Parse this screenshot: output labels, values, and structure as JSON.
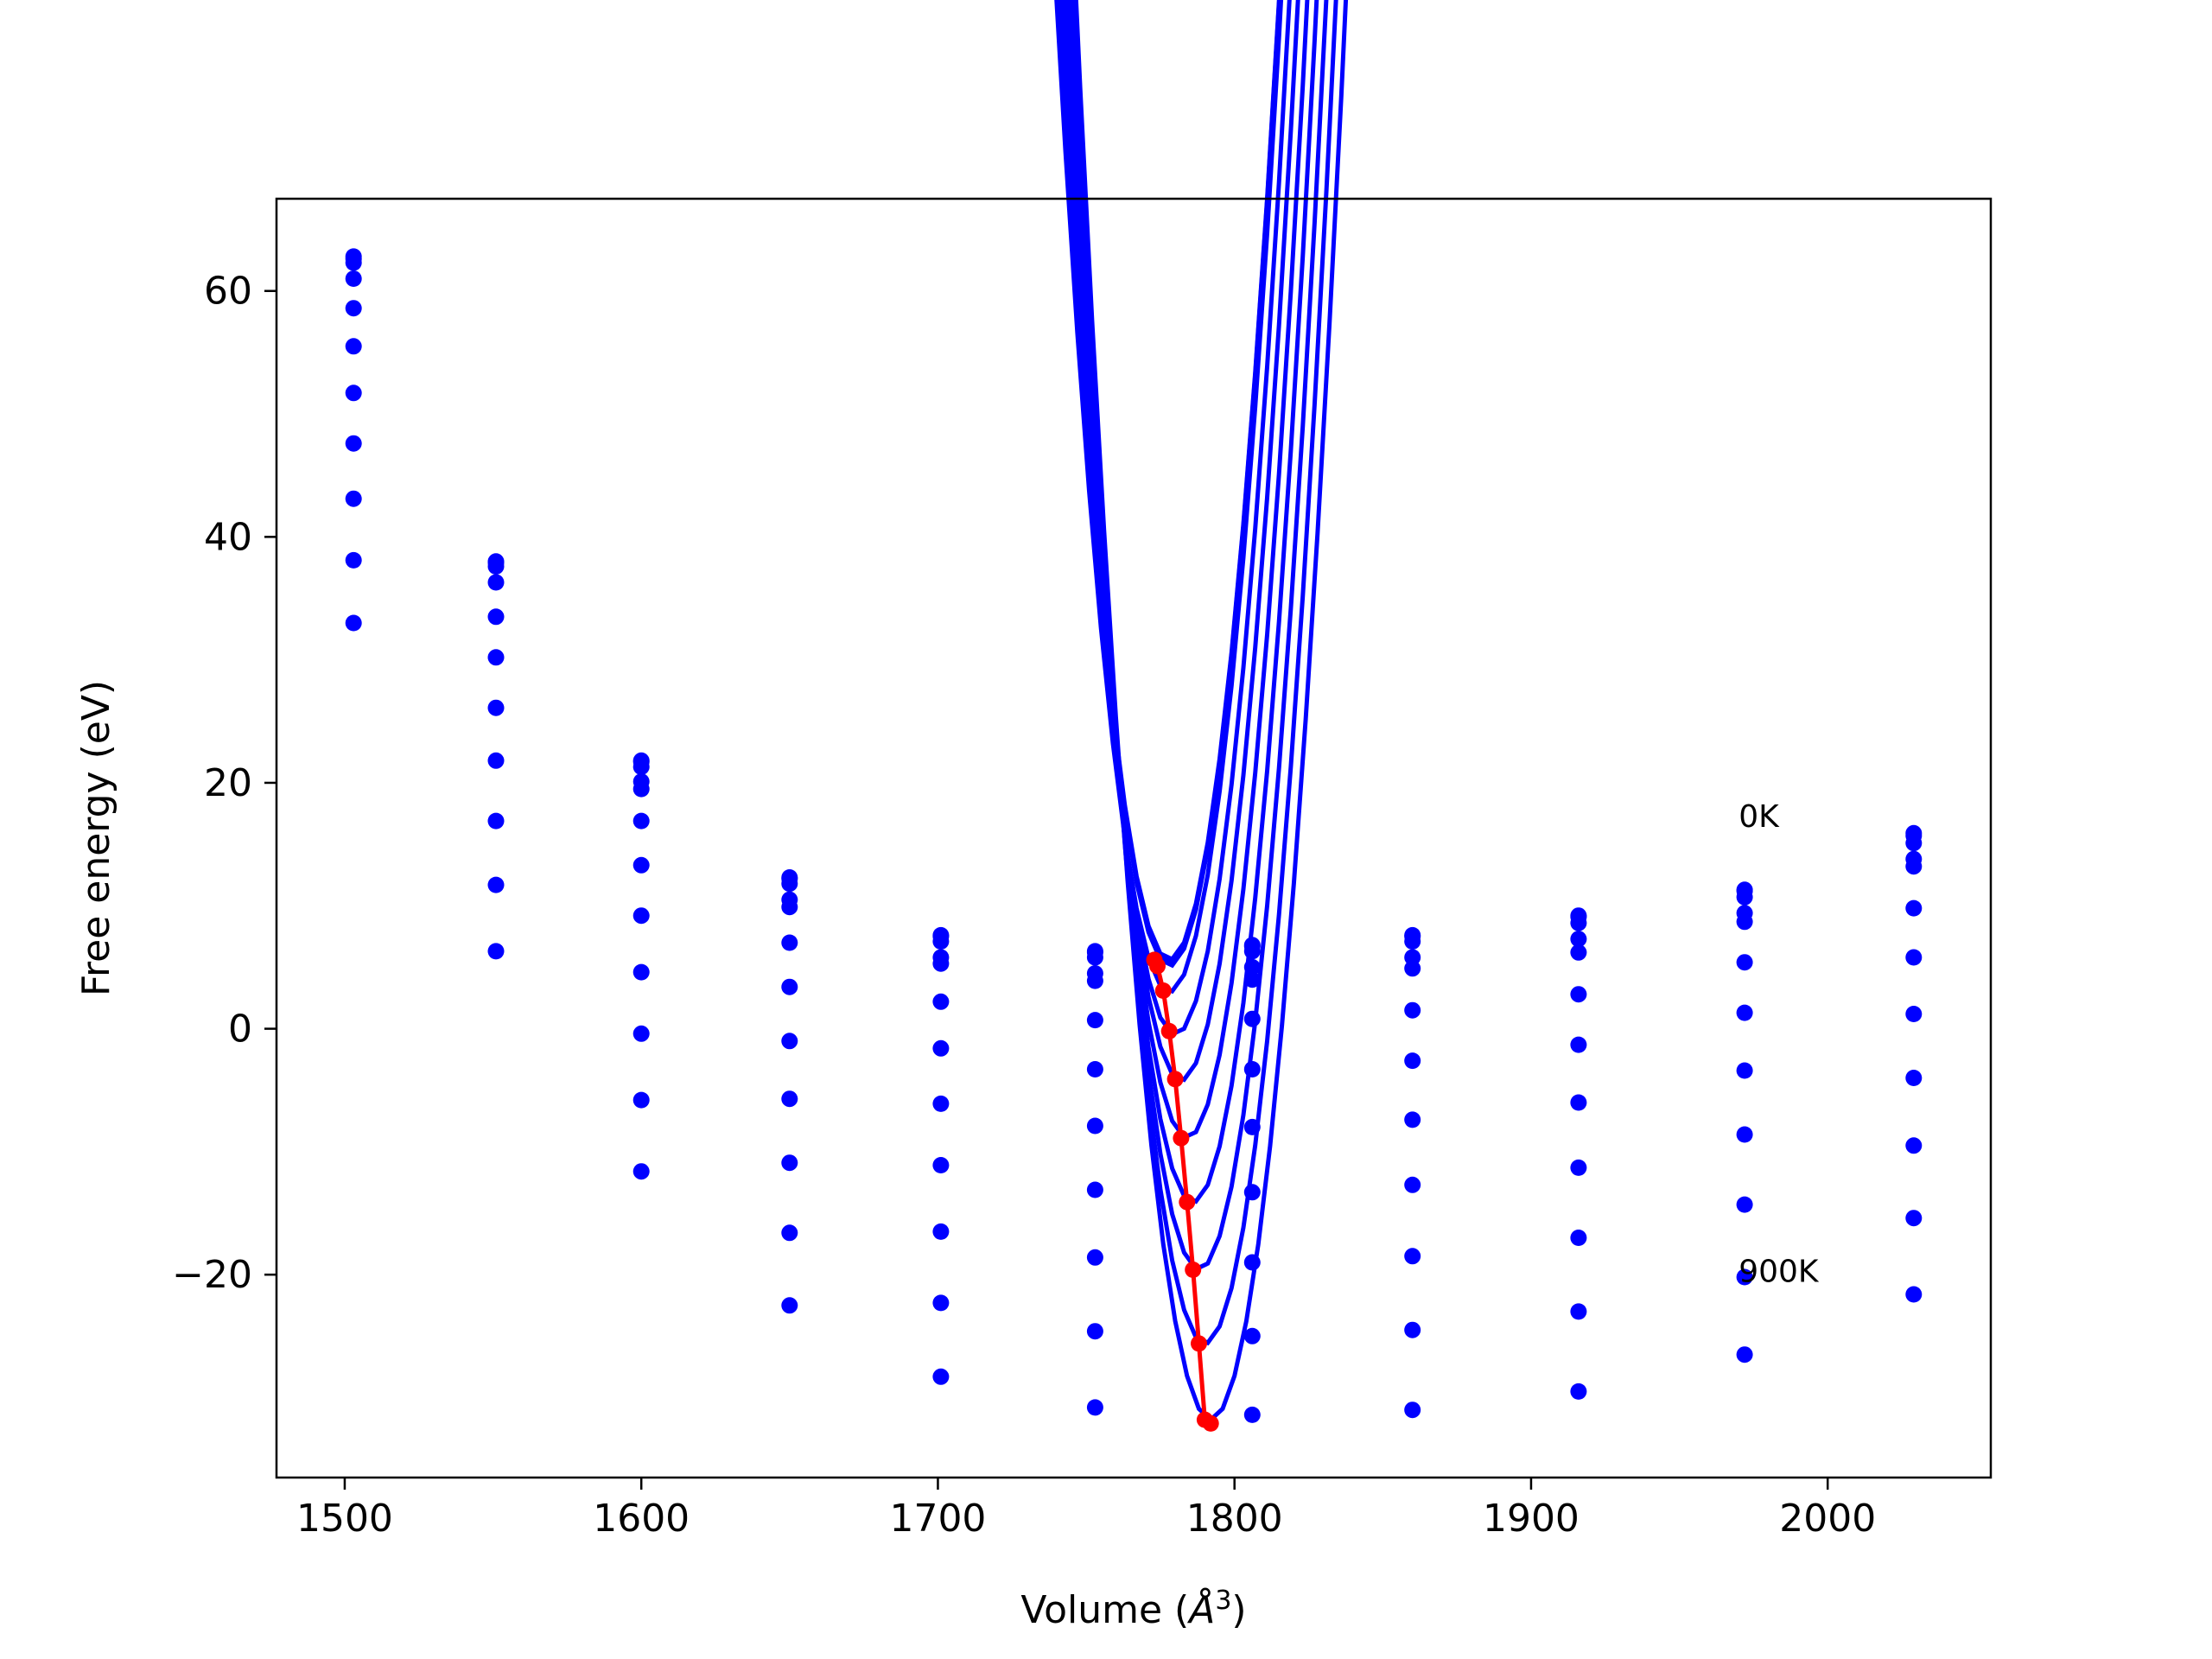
{
  "chart_data": {
    "type": "line",
    "xlabel": "Volume",
    "xlabel_unit_base": "Å",
    "xlabel_unit_exp": "3",
    "ylabel": "Free energy (eV)",
    "xlim": [
      1477,
      2055
    ],
    "ylim": [
      -36.5,
      67.5
    ],
    "xticks": [
      1500,
      1600,
      1700,
      1800,
      1900,
      2000
    ],
    "yticks": [
      -20,
      0,
      20,
      40,
      60
    ],
    "ytick_labels": [
      "−20",
      "0",
      "20",
      "40",
      "60"
    ],
    "grid": false,
    "annotations": [
      {
        "text": "0K",
        "x": 1970,
        "y": 16.4
      },
      {
        "text": "900K",
        "x": 1970,
        "y": -20.6
      }
    ],
    "volumes": [
      1503,
      1551,
      1600,
      1650,
      1701,
      1753,
      1806,
      1860,
      1916,
      1972,
      2029
    ],
    "series": [
      {
        "label": "0K",
        "color": "#0000ff",
        "values": [
          62.8,
          38.0,
          21.8,
          12.3,
          7.6,
          6.3,
          6.8,
          7.6,
          9.2,
          11.3,
          15.9
        ]
      },
      {
        "color": "#0000ff",
        "values": [
          62.6,
          37.9,
          21.7,
          12.2,
          7.5,
          6.2,
          6.7,
          7.5,
          9.1,
          11.2,
          15.7
        ]
      },
      {
        "color": "#0000ff",
        "values": [
          62.3,
          37.6,
          21.3,
          11.8,
          7.1,
          5.8,
          6.3,
          7.1,
          8.6,
          10.7,
          15.1
        ]
      },
      {
        "color": "#0000ff",
        "values": [
          61.0,
          36.3,
          20.1,
          10.5,
          5.8,
          4.5,
          5.0,
          5.8,
          7.3,
          9.4,
          13.8
        ]
      },
      {
        "color": "#0000ff",
        "values": [
          58.6,
          33.5,
          19.5,
          9.9,
          5.3,
          3.9,
          4.0,
          4.9,
          6.2,
          8.7,
          13.2
        ]
      },
      {
        "color": "#0000ff",
        "values": [
          55.5,
          30.2,
          16.9,
          7.0,
          2.2,
          0.7,
          0.8,
          1.5,
          2.8,
          5.4,
          9.8
        ]
      },
      {
        "color": "#0000ff",
        "values": [
          51.7,
          26.1,
          13.3,
          3.4,
          -1.6,
          -3.3,
          -3.3,
          -2.6,
          -1.3,
          1.3,
          5.8
        ]
      },
      {
        "color": "#0000ff",
        "values": [
          47.6,
          21.8,
          9.2,
          -1.0,
          -6.1,
          -7.9,
          -8.0,
          -7.4,
          -6.0,
          -3.4,
          1.2
        ]
      },
      {
        "color": "#0000ff",
        "values": [
          43.1,
          16.9,
          4.6,
          -5.7,
          -11.1,
          -13.1,
          -13.3,
          -12.7,
          -11.3,
          -8.6,
          -4.0
        ]
      },
      {
        "color": "#0000ff",
        "values": [
          38.1,
          11.7,
          -0.4,
          -10.9,
          -16.5,
          -18.6,
          -19.0,
          -18.5,
          -17.0,
          -14.3,
          -9.5
        ]
      },
      {
        "color": "#0000ff",
        "values": [
          33.0,
          6.3,
          -5.8,
          -16.6,
          -22.3,
          -24.6,
          -25.0,
          -24.5,
          -23.0,
          -20.2,
          -15.4
        ]
      },
      {
        "label": "900K",
        "color": "#0000ff",
        "values": [
          null,
          null,
          -11.6,
          -22.5,
          -28.3,
          -30.8,
          -31.4,
          -31.0,
          -29.5,
          -26.5,
          -21.6
        ]
      }
    ],
    "fit_curves": [
      {
        "ymin": 5.6,
        "vmin": 1778,
        "a": 56.3,
        "b": 0.00028,
        "c": 3.18e-07,
        "vstart": 1503,
        "vend": 2029
      },
      {
        "ymin": 5.4,
        "vmin": 1778,
        "a": 56.3,
        "b": 0.00028,
        "c": 3.18e-07,
        "vstart": 1503,
        "vend": 2029
      },
      {
        "ymin": 5.1,
        "vmin": 1778,
        "a": 56.3,
        "b": 0.00028,
        "c": 3.18e-07,
        "vstart": 1503,
        "vend": 2029
      },
      {
        "ymin": 3.0,
        "vmin": 1778,
        "a": 56.2,
        "b": 0.000225,
        "c": 3.23e-07,
        "vstart": 1503,
        "vend": 2029
      },
      {
        "ymin": -0.5,
        "vmin": 1780,
        "a": 56.2,
        "b": 0.00018,
        "c": 3.28e-07,
        "vstart": 1503,
        "vend": 2029
      },
      {
        "ymin": -4.2,
        "vmin": 1782,
        "a": 56.1,
        "b": 0.00014,
        "c": 3.33e-07,
        "vstart": 1503,
        "vend": 2029
      },
      {
        "ymin": -8.9,
        "vmin": 1784,
        "a": 56.0,
        "b": 0.0001,
        "c": 3.38e-07,
        "vstart": 1503,
        "vend": 2029
      },
      {
        "ymin": -14.1,
        "vmin": 1786,
        "a": 56.0,
        "b": 6e-05,
        "c": 3.43e-07,
        "vstart": 1503,
        "vend": 2029
      },
      {
        "ymin": -19.6,
        "vmin": 1788,
        "a": 55.9,
        "b": 2e-05,
        "c": 3.48e-07,
        "vstart": 1503,
        "vend": 2029
      },
      {
        "ymin": -25.6,
        "vmin": 1790,
        "a": 55.8,
        "b": -2e-05,
        "c": 3.53e-07,
        "vstart": 1503,
        "vend": 2029
      },
      {
        "ymin": -31.8,
        "vmin": 1792,
        "a": 55.7,
        "b": -6e-05,
        "c": 3.58e-07,
        "vstart": 1600,
        "vend": 2029
      }
    ],
    "minima_line": {
      "color": "#ff0000",
      "x": [
        1773,
        1774,
        1776,
        1778,
        1780,
        1782,
        1784,
        1786,
        1788,
        1790,
        1792
      ],
      "y": [
        5.6,
        5.1,
        3.1,
        -0.2,
        -4.1,
        -8.9,
        -14.1,
        -19.6,
        -25.6,
        -31.8,
        -32.1
      ]
    }
  }
}
